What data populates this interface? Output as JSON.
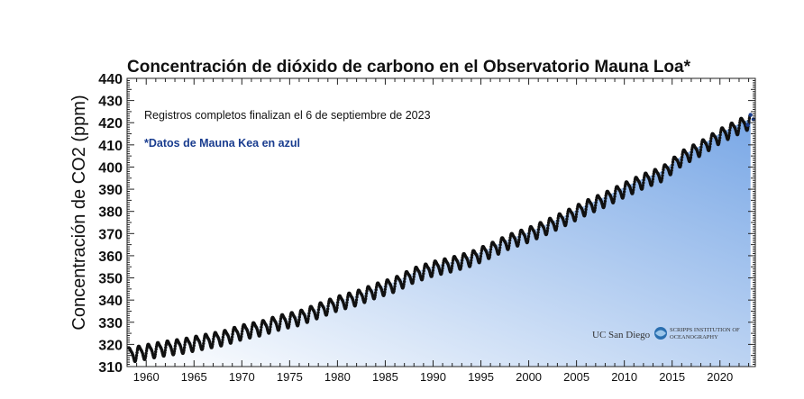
{
  "chart_data": {
    "type": "line",
    "title": "Concentración de dióxido de carbono en el Observatorio Mauna Loa*",
    "ylabel": "Concentración de CO2 (ppm)",
    "xlabel": "",
    "ylim": [
      310,
      440
    ],
    "xlim": [
      1958,
      2023.7
    ],
    "yticks": [
      310,
      320,
      330,
      340,
      350,
      360,
      370,
      380,
      390,
      400,
      410,
      420,
      430,
      440
    ],
    "xticks": [
      1960,
      1965,
      1970,
      1975,
      1980,
      1985,
      1990,
      1995,
      2000,
      2005,
      2010,
      2015,
      2020
    ],
    "grid": false,
    "seasonal_amplitude_ppm": 3,
    "series": [
      {
        "color": "#111111",
        "x": [
          1958.2,
          1960,
          1962,
          1964,
          1966,
          1968,
          1970,
          1972,
          1974,
          1976,
          1978,
          1980,
          1982,
          1984,
          1986,
          1988,
          1990,
          1992,
          1994,
          1996,
          1998,
          2000,
          2002,
          2004,
          2006,
          2008,
          2010,
          2012,
          2014,
          2016,
          2018,
          2020,
          2022,
          2023.2
        ],
        "y": [
          315.3,
          316.9,
          318.4,
          319.6,
          321.4,
          323.0,
          325.7,
          327.5,
          330.2,
          332.1,
          335.4,
          338.7,
          341.1,
          344.4,
          347.2,
          351.5,
          354.4,
          356.4,
          358.9,
          362.6,
          366.7,
          369.7,
          373.4,
          377.5,
          381.9,
          385.6,
          389.9,
          393.9,
          397.2,
          404.2,
          408.7,
          414.2,
          418.5,
          420.9
        ]
      },
      {
        "color": "#1a3d8f",
        "x": [
          2022.9,
          2023.2,
          2023.5
        ],
        "y": [
          419.0,
          423.5,
          421.5
        ]
      }
    ],
    "annotations": [
      "Registros completos finalizan el 6 de septiembre de 2023",
      "*Datos de Mauna Kea en azul"
    ],
    "fill_colors": [
      "#ffffff",
      "#7aa8e6"
    ]
  },
  "logos": {
    "ucsd": "UC San Diego",
    "scripps_line1": "SCRIPPS INSTITUTION OF",
    "scripps_line2": "OCEANOGRAPHY"
  }
}
